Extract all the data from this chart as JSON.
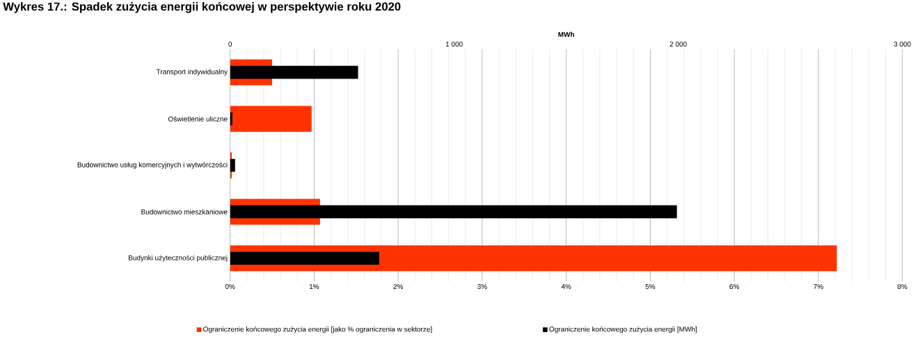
{
  "chart_data": {
    "type": "bar",
    "orientation": "horizontal",
    "title": "Wykres 17.: Spadek zużycia energii końcowej w perspektywie roku 2020",
    "x2label": "MWh",
    "categories": [
      "Transport indywidualny",
      "Oświetlenie uliczne",
      "Budownictwo usług komercyjnych i wytwórczości",
      "Budownictwo mieszkaniowe",
      "Budynki użyteczności publicznej"
    ],
    "series": [
      {
        "name": "Ograniczenie końcowego zużycia energii  [jako % ograniczenia w sektorze]",
        "color": "#ff3300",
        "values": [
          0.5,
          0.97,
          0.02,
          1.07,
          7.22
        ]
      },
      {
        "name": "Ograniczenie końcowego zużycia energii  [MWh]",
        "color": "#000000",
        "axis": "x2",
        "values": [
          571,
          10,
          22,
          1994,
          665
        ]
      }
    ],
    "xlim": [
      0,
      8
    ],
    "xticks": [
      {
        "value": 0,
        "label": "0%"
      },
      {
        "value": 1,
        "label": "1%"
      },
      {
        "value": 2,
        "label": "2%"
      },
      {
        "value": 3,
        "label": "3%"
      },
      {
        "value": 4,
        "label": "4%"
      },
      {
        "value": 5,
        "label": "5%"
      },
      {
        "value": 6,
        "label": "6%"
      },
      {
        "value": 7,
        "label": "7%"
      },
      {
        "value": 8,
        "label": "8%"
      }
    ],
    "x2lim": [
      0,
      3000
    ],
    "x2ticks": [
      0,
      {
        "value": 1000,
        "label": "1 000"
      },
      {
        "value": 2000,
        "label": "2 000"
      },
      {
        "value": 3000,
        "label": "3 000"
      }
    ],
    "grid": "x",
    "legend": "bottom"
  }
}
